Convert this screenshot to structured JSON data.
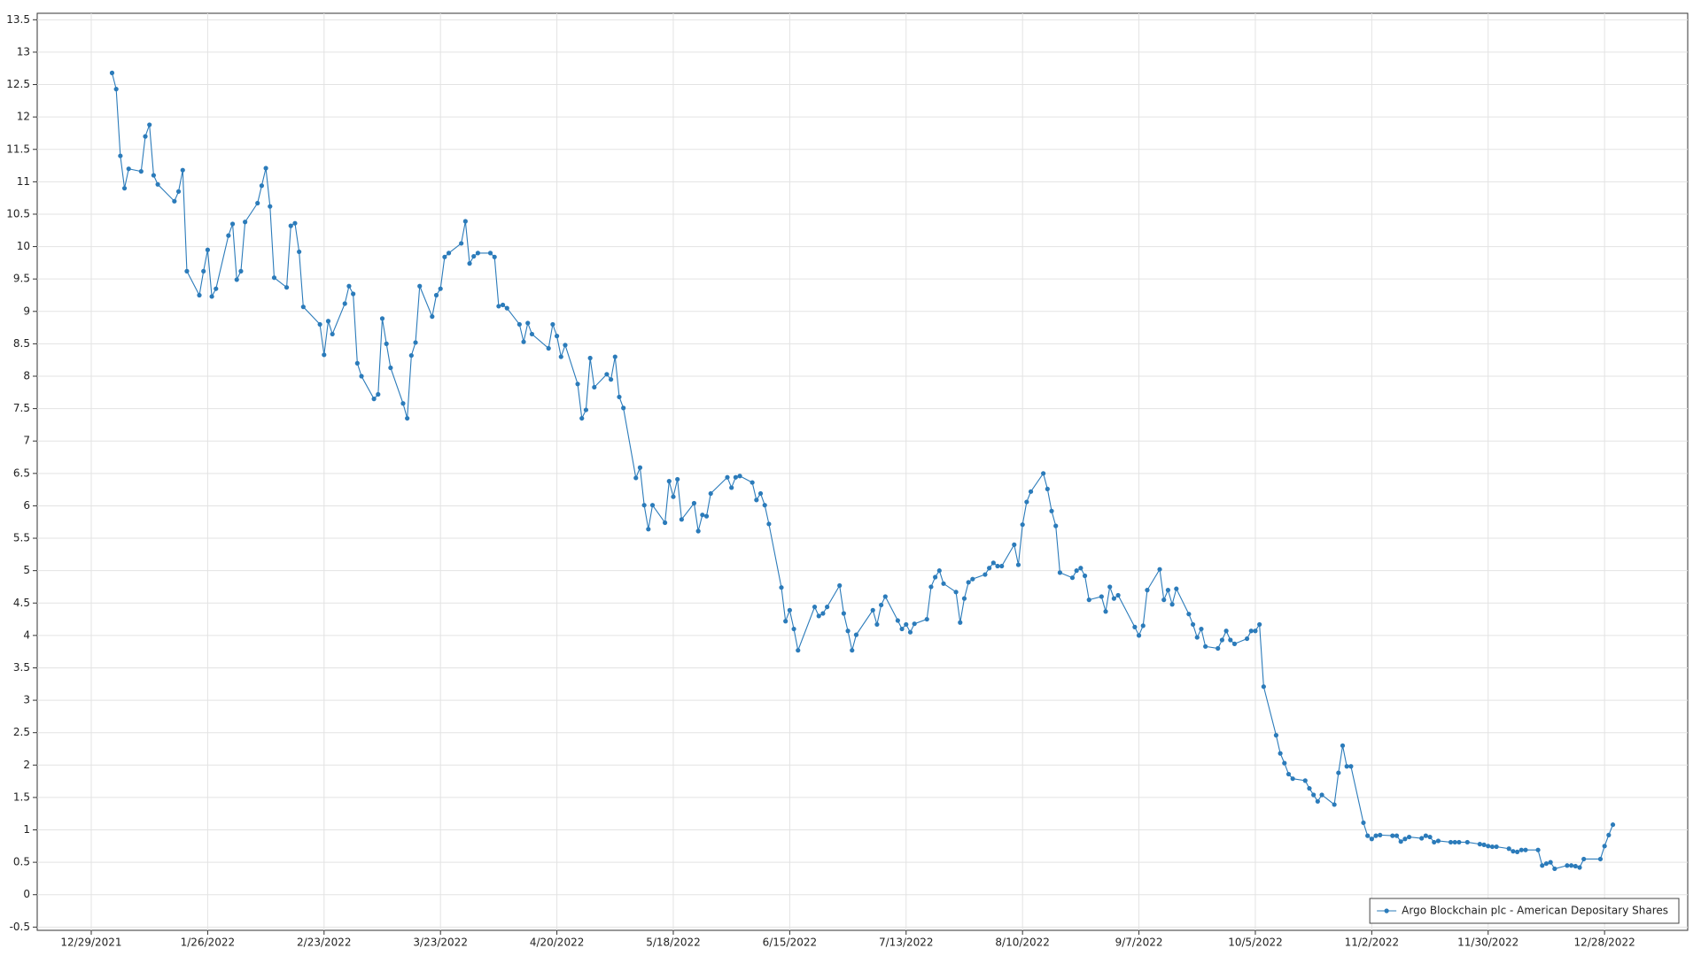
{
  "chart_data": {
    "type": "line",
    "xlim": [
      "12/16/2021",
      "1/17/2023"
    ],
    "xticks": [
      "12/29/2021",
      "1/26/2022",
      "2/23/2022",
      "3/23/2022",
      "4/20/2022",
      "5/18/2022",
      "6/15/2022",
      "7/13/2022",
      "8/10/2022",
      "9/7/2022",
      "10/5/2022",
      "11/2/2022",
      "11/30/2022",
      "12/28/2022"
    ],
    "ylim": [
      -0.55,
      13.6
    ],
    "yticks": [
      -0.5,
      0,
      0.5,
      1,
      1.5,
      2,
      2.5,
      3,
      3.5,
      4,
      4.5,
      5,
      5.5,
      6,
      6.5,
      7,
      7.5,
      8,
      8.5,
      9,
      9.5,
      10,
      10.5,
      11,
      11.5,
      12,
      12.5,
      13,
      13.5
    ],
    "grid": true,
    "legend": "lower right",
    "x": [
      "1/3/2022",
      "1/4/2022",
      "1/5/2022",
      "1/6/2022",
      "1/7/2022",
      "1/10/2022",
      "1/11/2022",
      "1/12/2022",
      "1/13/2022",
      "1/14/2022",
      "1/18/2022",
      "1/19/2022",
      "1/20/2022",
      "1/21/2022",
      "1/24/2022",
      "1/25/2022",
      "1/26/2022",
      "1/27/2022",
      "1/28/2022",
      "1/31/2022",
      "2/1/2022",
      "2/2/2022",
      "2/3/2022",
      "2/4/2022",
      "2/7/2022",
      "2/8/2022",
      "2/9/2022",
      "2/10/2022",
      "2/11/2022",
      "2/14/2022",
      "2/15/2022",
      "2/16/2022",
      "2/17/2022",
      "2/18/2022",
      "2/22/2022",
      "2/23/2022",
      "2/24/2022",
      "2/25/2022",
      "2/28/2022",
      "3/1/2022",
      "3/2/2022",
      "3/3/2022",
      "3/4/2022",
      "3/7/2022",
      "3/8/2022",
      "3/9/2022",
      "3/10/2022",
      "3/11/2022",
      "3/14/2022",
      "3/15/2022",
      "3/16/2022",
      "3/17/2022",
      "3/18/2022",
      "3/21/2022",
      "3/22/2022",
      "3/23/2022",
      "3/24/2022",
      "3/25/2022",
      "3/28/2022",
      "3/29/2022",
      "3/30/2022",
      "3/31/2022",
      "4/1/2022",
      "4/4/2022",
      "4/5/2022",
      "4/6/2022",
      "4/7/2022",
      "4/8/2022",
      "4/11/2022",
      "4/12/2022",
      "4/13/2022",
      "4/14/2022",
      "4/18/2022",
      "4/19/2022",
      "4/20/2022",
      "4/21/2022",
      "4/22/2022",
      "4/25/2022",
      "4/26/2022",
      "4/27/2022",
      "4/28/2022",
      "4/29/2022",
      "5/2/2022",
      "5/3/2022",
      "5/4/2022",
      "5/5/2022",
      "5/6/2022",
      "5/9/2022",
      "5/10/2022",
      "5/11/2022",
      "5/12/2022",
      "5/13/2022",
      "5/16/2022",
      "5/17/2022",
      "5/18/2022",
      "5/19/2022",
      "5/20/2022",
      "5/23/2022",
      "5/24/2022",
      "5/25/2022",
      "5/26/2022",
      "5/27/2022",
      "5/31/2022",
      "6/1/2022",
      "6/2/2022",
      "6/3/2022",
      "6/6/2022",
      "6/7/2022",
      "6/8/2022",
      "6/9/2022",
      "6/10/2022",
      "6/13/2022",
      "6/14/2022",
      "6/15/2022",
      "6/16/2022",
      "6/17/2022",
      "6/21/2022",
      "6/22/2022",
      "6/23/2022",
      "6/24/2022",
      "6/27/2022",
      "6/28/2022",
      "6/29/2022",
      "6/30/2022",
      "7/1/2022",
      "7/5/2022",
      "7/6/2022",
      "7/7/2022",
      "7/8/2022",
      "7/11/2022",
      "7/12/2022",
      "7/13/2022",
      "7/14/2022",
      "7/15/2022",
      "7/18/2022",
      "7/19/2022",
      "7/20/2022",
      "7/21/2022",
      "7/22/2022",
      "7/25/2022",
      "7/26/2022",
      "7/27/2022",
      "7/28/2022",
      "7/29/2022",
      "8/1/2022",
      "8/2/2022",
      "8/3/2022",
      "8/4/2022",
      "8/5/2022",
      "8/8/2022",
      "8/9/2022",
      "8/10/2022",
      "8/11/2022",
      "8/12/2022",
      "8/15/2022",
      "8/16/2022",
      "8/17/2022",
      "8/18/2022",
      "8/19/2022",
      "8/22/2022",
      "8/23/2022",
      "8/24/2022",
      "8/25/2022",
      "8/26/2022",
      "8/29/2022",
      "8/30/2022",
      "8/31/2022",
      "9/1/2022",
      "9/2/2022",
      "9/6/2022",
      "9/7/2022",
      "9/8/2022",
      "9/9/2022",
      "9/12/2022",
      "9/13/2022",
      "9/14/2022",
      "9/15/2022",
      "9/16/2022",
      "9/19/2022",
      "9/20/2022",
      "9/21/2022",
      "9/22/2022",
      "9/23/2022",
      "9/26/2022",
      "9/27/2022",
      "9/28/2022",
      "9/29/2022",
      "9/30/2022",
      "10/3/2022",
      "10/4/2022",
      "10/5/2022",
      "10/6/2022",
      "10/7/2022",
      "10/10/2022",
      "10/11/2022",
      "10/12/2022",
      "10/13/2022",
      "10/14/2022",
      "10/17/2022",
      "10/18/2022",
      "10/19/2022",
      "10/20/2022",
      "10/21/2022",
      "10/24/2022",
      "10/25/2022",
      "10/26/2022",
      "10/27/2022",
      "10/28/2022",
      "10/31/2022",
      "11/1/2022",
      "11/2/2022",
      "11/3/2022",
      "11/4/2022",
      "11/7/2022",
      "11/8/2022",
      "11/9/2022",
      "11/10/2022",
      "11/11/2022",
      "11/14/2022",
      "11/15/2022",
      "11/16/2022",
      "11/17/2022",
      "11/18/2022",
      "11/21/2022",
      "11/22/2022",
      "11/23/2022",
      "11/25/2022",
      "11/28/2022",
      "11/29/2022",
      "11/30/2022",
      "12/1/2022",
      "12/2/2022",
      "12/5/2022",
      "12/6/2022",
      "12/7/2022",
      "12/8/2022",
      "12/9/2022",
      "12/12/2022",
      "12/13/2022",
      "12/14/2022",
      "12/15/2022",
      "12/16/2022",
      "12/19/2022",
      "12/20/2022",
      "12/21/2022",
      "12/22/2022",
      "12/23/2022",
      "12/27/2022",
      "12/28/2022",
      "12/29/2022",
      "12/30/2022"
    ],
    "series": [
      {
        "name": "Argo Blockchain plc - American Depositary Shares",
        "color": "#2b7bba",
        "values": [
          12.68,
          12.43,
          11.4,
          10.9,
          11.2,
          11.16,
          11.7,
          11.88,
          11.1,
          10.96,
          10.7,
          10.85,
          11.18,
          9.62,
          9.25,
          9.62,
          9.95,
          9.23,
          9.35,
          10.17,
          10.35,
          9.49,
          9.62,
          10.38,
          10.67,
          10.94,
          11.21,
          10.62,
          9.52,
          9.37,
          10.32,
          10.36,
          9.92,
          9.07,
          8.8,
          8.33,
          8.85,
          8.65,
          9.12,
          9.39,
          9.27,
          8.2,
          8.0,
          7.65,
          7.72,
          8.89,
          8.5,
          8.13,
          7.58,
          7.35,
          8.32,
          8.52,
          9.39,
          8.92,
          9.25,
          9.35,
          9.84,
          9.9,
          10.05,
          10.39,
          9.74,
          9.85,
          9.9,
          9.9,
          9.84,
          9.08,
          9.1,
          9.05,
          8.8,
          8.53,
          8.82,
          8.65,
          8.43,
          8.8,
          8.62,
          8.3,
          8.48,
          7.88,
          7.35,
          7.48,
          8.28,
          7.83,
          8.03,
          7.95,
          8.3,
          7.68,
          7.51,
          6.43,
          6.59,
          6.01,
          5.64,
          6.01,
          5.74,
          6.38,
          6.14,
          6.41,
          5.79,
          6.04,
          5.61,
          5.86,
          5.84,
          6.19,
          6.44,
          6.28,
          6.44,
          6.46,
          6.36,
          6.09,
          6.19,
          6.01,
          5.72,
          4.74,
          4.22,
          4.39,
          4.1,
          3.77,
          4.44,
          4.3,
          4.34,
          4.44,
          4.77,
          4.34,
          4.07,
          3.77,
          4.01,
          4.39,
          4.17,
          4.47,
          4.6,
          4.23,
          4.1,
          4.17,
          4.05,
          4.18,
          4.25,
          4.75,
          4.9,
          5.0,
          4.8,
          4.67,
          4.2,
          4.57,
          4.82,
          4.87,
          4.94,
          5.04,
          5.12,
          5.07,
          5.07,
          5.4,
          5.09,
          5.71,
          6.06,
          6.22,
          6.5,
          6.26,
          5.92,
          5.69,
          4.97,
          4.89,
          5.0,
          5.04,
          4.92,
          4.55,
          4.6,
          4.37,
          4.75,
          4.57,
          4.62,
          4.13,
          4.0,
          4.15,
          4.7,
          5.02,
          4.55,
          4.7,
          4.48,
          4.72,
          4.33,
          4.17,
          3.97,
          4.1,
          3.83,
          3.8,
          3.93,
          4.07,
          3.93,
          3.87,
          3.95,
          4.07,
          4.07,
          4.17,
          3.21,
          2.46,
          2.18,
          2.03,
          1.86,
          1.79,
          1.76,
          1.64,
          1.54,
          1.44,
          1.54,
          1.39,
          1.88,
          2.3,
          1.98,
          1.98,
          1.11,
          0.91,
          0.86,
          0.91,
          0.92,
          0.91,
          0.91,
          0.82,
          0.86,
          0.89,
          0.87,
          0.91,
          0.89,
          0.81,
          0.83,
          0.81,
          0.81,
          0.81,
          0.81,
          0.78,
          0.77,
          0.75,
          0.74,
          0.74,
          0.71,
          0.67,
          0.66,
          0.69,
          0.69,
          0.69,
          0.45,
          0.48,
          0.5,
          0.4,
          0.45,
          0.45,
          0.44,
          0.42,
          0.55,
          0.55,
          0.75,
          0.92,
          1.08
        ]
      }
    ]
  }
}
